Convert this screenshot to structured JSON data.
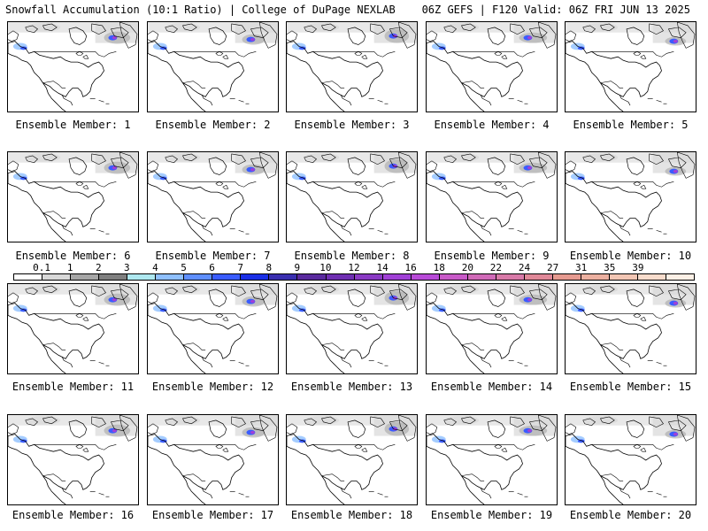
{
  "header": {
    "title_left": "Snowfall Accumulation (10:1 Ratio) | College of DuPage NEXLAB",
    "title_right": "06Z GEFS | F120 Valid: 06Z FRI JUN 13 2025"
  },
  "members": [
    {
      "label": "Ensemble Member: 1"
    },
    {
      "label": "Ensemble Member: 2"
    },
    {
      "label": "Ensemble Member: 3"
    },
    {
      "label": "Ensemble Member: 4"
    },
    {
      "label": "Ensemble Member: 5"
    },
    {
      "label": "Ensemble Member: 6"
    },
    {
      "label": "Ensemble Member: 7"
    },
    {
      "label": "Ensemble Member: 8"
    },
    {
      "label": "Ensemble Member: 9"
    },
    {
      "label": "Ensemble Member: 10"
    },
    {
      "label": "Ensemble Member: 11"
    },
    {
      "label": "Ensemble Member: 12"
    },
    {
      "label": "Ensemble Member: 13"
    },
    {
      "label": "Ensemble Member: 14"
    },
    {
      "label": "Ensemble Member: 15"
    },
    {
      "label": "Ensemble Member: 16"
    },
    {
      "label": "Ensemble Member: 17"
    },
    {
      "label": "Ensemble Member: 18"
    },
    {
      "label": "Ensemble Member: 19"
    },
    {
      "label": "Ensemble Member: 20"
    }
  ],
  "colorbar": {
    "labels": [
      "0.1",
      "1",
      "2",
      "3",
      "4",
      "5",
      "6",
      "7",
      "8",
      "9",
      "10",
      "12",
      "14",
      "16",
      "18",
      "20",
      "22",
      "24",
      "27",
      "31",
      "35",
      "39"
    ],
    "colors": [
      "#ffffff",
      "#d9d9d9",
      "#a6a6a6",
      "#7f7f7f",
      "#aee8f0",
      "#8fc0ff",
      "#5f8fff",
      "#3a5cff",
      "#1a2fe6",
      "#3a2fb0",
      "#5a2a9e",
      "#6f2fb2",
      "#8a3ac4",
      "#a040d6",
      "#b84ad8",
      "#c85ac8",
      "#d06ab8",
      "#d87aa8",
      "#e08898",
      "#e69a90",
      "#ecb0a0",
      "#f2c6b4",
      "#f8dccc",
      "#fdf0e6"
    ]
  }
}
